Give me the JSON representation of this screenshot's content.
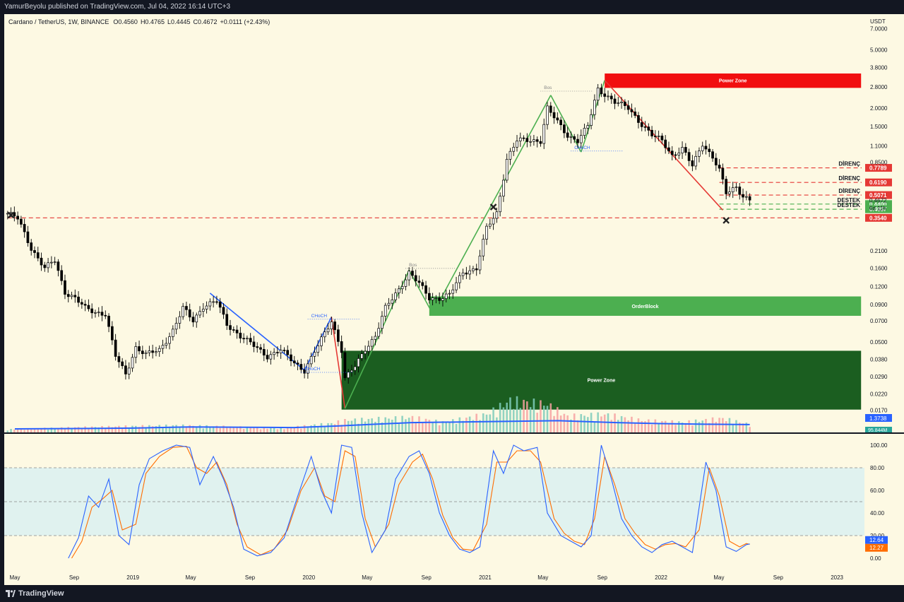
{
  "header": {
    "published_line": "YamurBeyolu published on TradingView.com, Jul 04, 2022 16:14 UTC+3"
  },
  "footer": {
    "brand": "TradingView"
  },
  "chart_data": {
    "type": "candlestick",
    "legend": {
      "symbol": "Cardano / TetherUS, 1W, BINANCE",
      "open": "O0.4560",
      "high": "H0.4765",
      "low": "L0.4445",
      "close": "C0.4672",
      "change": "+0.0111 (+2.43%)"
    },
    "price_axis_unit": "USDT",
    "y_scale": "log",
    "ylim": [
      0.012,
      8.8
    ],
    "x_range": [
      "2018-04-09",
      "2023-02-27"
    ],
    "price_ticks": [
      "7.0000",
      "5.0000",
      "3.8000",
      "2.8000",
      "2.0000",
      "1.5000",
      "1.1000",
      "0.8500",
      "0.2100",
      "0.1600",
      "0.1200",
      "0.0900",
      "0.0700",
      "0.0500",
      "0.0380",
      "0.0290",
      "0.0220",
      "0.0170"
    ],
    "price_tick_values": [
      7.0,
      5.0,
      3.8,
      2.8,
      2.0,
      1.5,
      1.1,
      0.85,
      0.21,
      0.16,
      0.12,
      0.09,
      0.07,
      0.05,
      0.038,
      0.029,
      0.022,
      0.017
    ],
    "time_labels": [
      "May",
      "Sep",
      "2019",
      "May",
      "Sep",
      "2020",
      "May",
      "Sep",
      "2021",
      "May",
      "Sep",
      "2022",
      "May",
      "Sep",
      "2023"
    ],
    "time_label_dates": [
      "2018-05-01",
      "2018-09-01",
      "2019-01-01",
      "2019-05-01",
      "2019-09-01",
      "2020-01-01",
      "2020-05-01",
      "2020-09-01",
      "2021-01-01",
      "2021-05-01",
      "2021-09-01",
      "2022-01-01",
      "2022-05-01",
      "2022-09-01",
      "2023-01-01"
    ],
    "price_path": [
      [
        "2018-04-16",
        0.38
      ],
      [
        "2018-05-07",
        0.35
      ],
      [
        "2018-06-04",
        0.22
      ],
      [
        "2018-07-02",
        0.16
      ],
      [
        "2018-07-23",
        0.18
      ],
      [
        "2018-08-13",
        0.11
      ],
      [
        "2018-09-03",
        0.1
      ],
      [
        "2018-09-24",
        0.085
      ],
      [
        "2018-10-15",
        0.08
      ],
      [
        "2018-11-05",
        0.078
      ],
      [
        "2018-11-26",
        0.04
      ],
      [
        "2018-12-17",
        0.03
      ],
      [
        "2019-01-07",
        0.046
      ],
      [
        "2019-01-28",
        0.041
      ],
      [
        "2019-02-25",
        0.044
      ],
      [
        "2019-03-25",
        0.06
      ],
      [
        "2019-04-15",
        0.085
      ],
      [
        "2019-05-06",
        0.07
      ],
      [
        "2019-05-27",
        0.088
      ],
      [
        "2019-06-24",
        0.095
      ],
      [
        "2019-07-15",
        0.066
      ],
      [
        "2019-08-12",
        0.055
      ],
      [
        "2019-09-09",
        0.047
      ],
      [
        "2019-10-07",
        0.04
      ],
      [
        "2019-11-04",
        0.044
      ],
      [
        "2019-12-02",
        0.036
      ],
      [
        "2019-12-23",
        0.032
      ],
      [
        "2020-01-20",
        0.047
      ],
      [
        "2020-02-17",
        0.07
      ],
      [
        "2020-03-09",
        0.044
      ],
      [
        "2020-03-16",
        0.028
      ],
      [
        "2020-04-06",
        0.034
      ],
      [
        "2020-04-27",
        0.045
      ],
      [
        "2020-05-18",
        0.055
      ],
      [
        "2020-06-08",
        0.085
      ],
      [
        "2020-07-06",
        0.115
      ],
      [
        "2020-07-27",
        0.15
      ],
      [
        "2020-08-17",
        0.125
      ],
      [
        "2020-09-07",
        0.1
      ],
      [
        "2020-09-28",
        0.1
      ],
      [
        "2020-10-19",
        0.105
      ],
      [
        "2020-11-16",
        0.15
      ],
      [
        "2020-12-14",
        0.16
      ],
      [
        "2021-01-04",
        0.3
      ],
      [
        "2021-01-25",
        0.38
      ],
      [
        "2021-02-15",
        0.9
      ],
      [
        "2021-03-08",
        1.2
      ],
      [
        "2021-04-05",
        1.2
      ],
      [
        "2021-04-26",
        1.2
      ],
      [
        "2021-05-10",
        2.0
      ],
      [
        "2021-05-31",
        1.6
      ],
      [
        "2021-06-21",
        1.3
      ],
      [
        "2021-07-12",
        1.2
      ],
      [
        "2021-08-02",
        1.5
      ],
      [
        "2021-08-23",
        2.7
      ],
      [
        "2021-09-06",
        2.5
      ],
      [
        "2021-09-27",
        2.2
      ],
      [
        "2021-10-25",
        2.0
      ],
      [
        "2021-11-22",
        1.55
      ],
      [
        "2021-12-13",
        1.3
      ],
      [
        "2022-01-03",
        1.2
      ],
      [
        "2022-01-24",
        0.95
      ],
      [
        "2022-02-14",
        1.05
      ],
      [
        "2022-03-07",
        0.8
      ],
      [
        "2022-03-28",
        1.15
      ],
      [
        "2022-04-18",
        0.92
      ],
      [
        "2022-05-02",
        0.75
      ],
      [
        "2022-05-16",
        0.52
      ],
      [
        "2022-06-06",
        0.58
      ],
      [
        "2022-06-20",
        0.5
      ],
      [
        "2022-07-04",
        0.4672
      ]
    ],
    "volume_scale": "0–100 relative",
    "volume_path": [
      [
        "2018-04-16",
        15
      ],
      [
        "2018-09-03",
        25
      ],
      [
        "2018-12-03",
        30
      ],
      [
        "2019-04-01",
        35
      ],
      [
        "2019-07-01",
        30
      ],
      [
        "2019-11-01",
        20
      ],
      [
        "2020-02-17",
        45
      ],
      [
        "2020-03-16",
        60
      ],
      [
        "2020-08-03",
        75
      ],
      [
        "2020-10-05",
        50
      ],
      [
        "2021-01-04",
        90
      ],
      [
        "2021-02-22",
        160
      ],
      [
        "2021-05-10",
        140
      ],
      [
        "2021-06-21",
        80
      ],
      [
        "2021-09-06",
        90
      ],
      [
        "2021-11-22",
        60
      ],
      [
        "2022-02-14",
        50
      ],
      [
        "2022-05-09",
        70
      ],
      [
        "2022-07-04",
        40
      ]
    ],
    "volume_ma_path": [
      [
        "2018-05-01",
        18
      ],
      [
        "2018-09-01",
        20
      ],
      [
        "2019-01-01",
        22
      ],
      [
        "2019-05-01",
        28
      ],
      [
        "2019-09-01",
        26
      ],
      [
        "2019-12-01",
        25
      ],
      [
        "2020-03-01",
        33
      ],
      [
        "2020-05-01",
        40
      ],
      [
        "2020-08-01",
        50
      ],
      [
        "2021-01-01",
        55
      ],
      [
        "2021-06-01",
        60
      ],
      [
        "2021-10-01",
        50
      ],
      [
        "2022-01-01",
        45
      ],
      [
        "2022-04-01",
        42
      ],
      [
        "2022-07-04",
        40
      ]
    ],
    "volume_ma_label": "1.3738",
    "volume_value_label": "95.844M",
    "zones": [
      {
        "label": "Power Zone",
        "start": "2021-09-06",
        "end": "2023-02-20",
        "low": 2.75,
        "high": 3.45,
        "color": "#f10f10"
      },
      {
        "label": "OrderBlock",
        "start": "2020-09-07",
        "end": "2023-02-20",
        "low": 0.0755,
        "high": 0.1025,
        "color": "#4caf50"
      },
      {
        "label": "Power Zone",
        "start": "2020-03-09",
        "end": "2023-02-20",
        "low": 0.0172,
        "high": 0.0435,
        "color": "#1b5e20"
      }
    ],
    "horizontal_levels": [
      {
        "label": "DİRENÇ",
        "value": 0.7789,
        "start": "2022-05-02",
        "color": "#e53935",
        "badge": "0.7789"
      },
      {
        "label": "DİRENÇ",
        "value": 0.619,
        "start": "2022-05-02",
        "color": "#e53935",
        "badge": "0.6190"
      },
      {
        "label": "DİRENÇ",
        "value": 0.5071,
        "start": "2022-05-02",
        "color": "#e53935",
        "badge": "0.5071"
      },
      {
        "label": "DESTEK",
        "value": 0.44,
        "start": "2022-05-02",
        "color": "#4caf50",
        "badge": "0.4400"
      },
      {
        "label": "DESTEK",
        "value": 0.4057,
        "start": "2022-05-02",
        "color": "#4caf50",
        "badge": "0.4057"
      },
      {
        "label": "",
        "value": 0.354,
        "start": "2018-04-16",
        "color": "#e53935",
        "badge": "0.3540"
      }
    ],
    "current_price_badge": "0.4672",
    "countdown_badge": "6d 11h",
    "structure_labels": [
      {
        "text": "CHoCH",
        "date": "2019-12-23",
        "price": 0.032,
        "color": "#2962ff"
      },
      {
        "text": "CHoCH",
        "date": "2020-01-06",
        "price": 0.074,
        "color": "#2962ff"
      },
      {
        "text": "Bos",
        "date": "2020-07-27",
        "price": 0.165,
        "color": "#888888"
      },
      {
        "text": "Bos",
        "date": "2021-05-03",
        "price": 2.7,
        "color": "#888888"
      },
      {
        "text": "CHoCH",
        "date": "2021-07-05",
        "price": 1.05,
        "color": "#2962ff"
      }
    ],
    "stoch_axis_labels": [
      "100.00",
      "80.00",
      "60.00",
      "40.00",
      "20.00",
      "0.00"
    ],
    "stoch_axis_values": [
      100,
      80,
      60,
      40,
      20,
      0
    ],
    "stoch_k_label": "12.64",
    "stoch_d_label": "12.27",
    "stoch_k": [
      [
        "2018-08-20",
        0
      ],
      [
        "2018-09-10",
        18
      ],
      [
        "2018-10-01",
        55
      ],
      [
        "2018-10-22",
        45
      ],
      [
        "2018-11-12",
        70
      ],
      [
        "2018-12-03",
        20
      ],
      [
        "2018-12-24",
        12
      ],
      [
        "2019-01-14",
        65
      ],
      [
        "2019-02-04",
        88
      ],
      [
        "2019-03-04",
        95
      ],
      [
        "2019-04-01",
        100
      ],
      [
        "2019-04-29",
        98
      ],
      [
        "2019-05-20",
        65
      ],
      [
        "2019-06-17",
        90
      ],
      [
        "2019-07-08",
        70
      ],
      [
        "2019-07-29",
        45
      ],
      [
        "2019-08-19",
        8
      ],
      [
        "2019-09-16",
        2
      ],
      [
        "2019-10-14",
        5
      ],
      [
        "2019-11-11",
        18
      ],
      [
        "2019-12-09",
        55
      ],
      [
        "2020-01-06",
        90
      ],
      [
        "2020-01-27",
        60
      ],
      [
        "2020-02-17",
        40
      ],
      [
        "2020-03-09",
        100
      ],
      [
        "2020-03-30",
        98
      ],
      [
        "2020-04-20",
        40
      ],
      [
        "2020-05-11",
        5
      ],
      [
        "2020-06-08",
        25
      ],
      [
        "2020-06-29",
        70
      ],
      [
        "2020-07-27",
        90
      ],
      [
        "2020-08-17",
        95
      ],
      [
        "2020-09-07",
        75
      ],
      [
        "2020-09-28",
        40
      ],
      [
        "2020-10-19",
        20
      ],
      [
        "2020-11-09",
        8
      ],
      [
        "2020-11-30",
        5
      ],
      [
        "2020-12-21",
        10
      ],
      [
        "2021-01-18",
        95
      ],
      [
        "2021-02-08",
        75
      ],
      [
        "2021-03-01",
        100
      ],
      [
        "2021-03-22",
        95
      ],
      [
        "2021-04-19",
        98
      ],
      [
        "2021-05-10",
        40
      ],
      [
        "2021-06-07",
        20
      ],
      [
        "2021-06-28",
        15
      ],
      [
        "2021-07-19",
        10
      ],
      [
        "2021-08-09",
        20
      ],
      [
        "2021-08-30",
        100
      ],
      [
        "2021-09-20",
        70
      ],
      [
        "2021-10-11",
        35
      ],
      [
        "2021-11-01",
        20
      ],
      [
        "2021-11-22",
        10
      ],
      [
        "2021-12-13",
        5
      ],
      [
        "2022-01-03",
        12
      ],
      [
        "2022-01-24",
        15
      ],
      [
        "2022-02-14",
        10
      ],
      [
        "2022-03-07",
        5
      ],
      [
        "2022-04-04",
        85
      ],
      [
        "2022-04-25",
        60
      ],
      [
        "2022-05-16",
        10
      ],
      [
        "2022-06-06",
        6
      ],
      [
        "2022-06-27",
        12
      ],
      [
        "2022-07-04",
        12.64
      ]
    ],
    "stoch_d": [
      [
        "2018-08-27",
        0
      ],
      [
        "2018-09-17",
        15
      ],
      [
        "2018-10-08",
        45
      ],
      [
        "2018-10-29",
        52
      ],
      [
        "2018-11-19",
        60
      ],
      [
        "2018-12-10",
        25
      ],
      [
        "2019-01-07",
        30
      ],
      [
        "2019-01-28",
        75
      ],
      [
        "2019-02-25",
        90
      ],
      [
        "2019-03-25",
        98
      ],
      [
        "2019-04-22",
        99
      ],
      [
        "2019-05-13",
        80
      ],
      [
        "2019-06-03",
        75
      ],
      [
        "2019-06-24",
        85
      ],
      [
        "2019-07-15",
        65
      ],
      [
        "2019-08-05",
        30
      ],
      [
        "2019-08-26",
        10
      ],
      [
        "2019-09-23",
        3
      ],
      [
        "2019-10-21",
        8
      ],
      [
        "2019-11-18",
        25
      ],
      [
        "2019-12-16",
        60
      ],
      [
        "2020-01-13",
        80
      ],
      [
        "2020-02-03",
        55
      ],
      [
        "2020-02-24",
        50
      ],
      [
        "2020-03-16",
        95
      ],
      [
        "2020-04-06",
        90
      ],
      [
        "2020-04-27",
        35
      ],
      [
        "2020-05-18",
        10
      ],
      [
        "2020-06-15",
        30
      ],
      [
        "2020-07-06",
        65
      ],
      [
        "2020-08-03",
        85
      ],
      [
        "2020-08-24",
        92
      ],
      [
        "2020-09-14",
        70
      ],
      [
        "2020-10-05",
        38
      ],
      [
        "2020-10-26",
        18
      ],
      [
        "2020-11-16",
        8
      ],
      [
        "2020-12-07",
        7
      ],
      [
        "2021-01-04",
        30
      ],
      [
        "2021-01-25",
        85
      ],
      [
        "2021-02-15",
        85
      ],
      [
        "2021-03-08",
        95
      ],
      [
        "2021-04-05",
        95
      ],
      [
        "2021-04-26",
        85
      ],
      [
        "2021-05-24",
        35
      ],
      [
        "2021-06-14",
        22
      ],
      [
        "2021-07-05",
        15
      ],
      [
        "2021-07-26",
        12
      ],
      [
        "2021-08-16",
        35
      ],
      [
        "2021-09-06",
        90
      ],
      [
        "2021-09-27",
        65
      ],
      [
        "2021-10-18",
        35
      ],
      [
        "2021-11-08",
        22
      ],
      [
        "2021-11-29",
        12
      ],
      [
        "2021-12-20",
        8
      ],
      [
        "2022-01-10",
        12
      ],
      [
        "2022-01-31",
        13
      ],
      [
        "2022-02-21",
        10
      ],
      [
        "2022-03-21",
        25
      ],
      [
        "2022-04-11",
        80
      ],
      [
        "2022-05-02",
        55
      ],
      [
        "2022-05-23",
        15
      ],
      [
        "2022-06-13",
        10
      ],
      [
        "2022-06-27",
        13
      ],
      [
        "2022-07-04",
        12.27
      ]
    ],
    "colors": {
      "background": "#fdf9e3",
      "candle_up": "#ffffff",
      "candle_down": "#000000",
      "volume_up": "#7fcdbb",
      "volume_down": "#f7a2a2",
      "volume_ma": "#2962ff",
      "stoch_k": "#2962ff",
      "stoch_d": "#ff6d00",
      "stoch_band": "#e0f2ef",
      "swing_blue": "#2962ff",
      "swing_green": "#4caf50",
      "swing_red": "#e53935"
    },
    "swing_lines": [
      {
        "color": "#2962ff",
        "points": [
          [
            "2019-06-10",
            0.108
          ],
          [
            "2019-12-23",
            0.032
          ]
        ]
      },
      {
        "color": "#2962ff",
        "points": [
          [
            "2019-12-23",
            0.032
          ],
          [
            "2020-02-17",
            0.074
          ]
        ]
      },
      {
        "color": "#e53935",
        "points": [
          [
            "2020-02-17",
            0.074
          ],
          [
            "2020-03-16",
            0.0175
          ]
        ]
      },
      {
        "color": "#4caf50",
        "points": [
          [
            "2020-03-16",
            0.0175
          ],
          [
            "2020-07-27",
            0.155
          ]
        ]
      },
      {
        "color": "#4caf50",
        "points": [
          [
            "2020-07-27",
            0.155
          ],
          [
            "2020-09-14",
            0.078
          ]
        ]
      },
      {
        "color": "#4caf50",
        "points": [
          [
            "2020-09-14",
            0.078
          ],
          [
            "2021-05-17",
            2.45
          ]
        ]
      },
      {
        "color": "#4caf50",
        "points": [
          [
            "2021-05-17",
            2.45
          ],
          [
            "2021-07-19",
            1.0
          ]
        ]
      },
      {
        "color": "#4caf50",
        "points": [
          [
            "2021-07-19",
            1.0
          ],
          [
            "2021-09-06",
            3.1
          ]
        ]
      },
      {
        "color": "#e53935",
        "points": [
          [
            "2021-09-06",
            3.1
          ],
          [
            "2022-05-09",
            0.4
          ]
        ]
      }
    ],
    "x_markers": [
      {
        "date": "2018-04-23",
        "price": 0.37
      },
      {
        "date": "2021-01-18",
        "price": 0.42
      },
      {
        "date": "2022-05-16",
        "price": 0.34
      }
    ]
  }
}
